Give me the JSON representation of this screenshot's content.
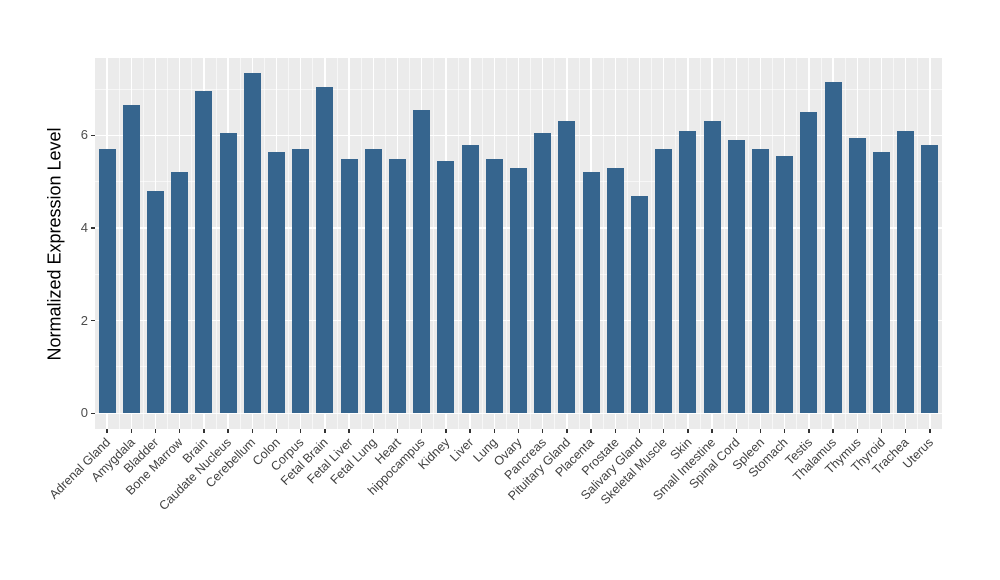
{
  "chart_data": {
    "type": "bar",
    "title": "",
    "xlabel": "",
    "ylabel": "Normalized Expression Level",
    "categories": [
      "Adrenal Gland",
      "Amygdala",
      "Bladder",
      "Bone Marrow",
      "Brain",
      "Caudate Nucleus",
      "Cerebellum",
      "Colon",
      "Corpus",
      "Fetal Brain",
      "Fetal Liver",
      "Fetal Lung",
      "Heart",
      "hippocampus",
      "Kidney",
      "Liver",
      "Lung",
      "Ovary",
      "Pancreas",
      "Pituitary Gland",
      "Placenta",
      "Prostate",
      "Salivary Gland",
      "Skeletal Muscle",
      "Skin",
      "Small Intestine",
      "Spinal Cord",
      "Spleen",
      "Stomach",
      "Testis",
      "Thalamus",
      "Thymus",
      "Thyroid",
      "Trachea",
      "Uterus"
    ],
    "values": [
      5.7,
      6.65,
      4.8,
      5.2,
      6.95,
      6.05,
      7.35,
      5.65,
      5.7,
      7.05,
      5.5,
      5.7,
      5.5,
      6.55,
      5.45,
      5.8,
      5.5,
      5.3,
      6.05,
      6.3,
      5.2,
      5.3,
      4.7,
      5.7,
      6.1,
      6.3,
      5.9,
      5.7,
      5.55,
      6.5,
      7.15,
      5.95,
      5.65,
      6.1,
      5.8
    ],
    "y_ticks": [
      0,
      2,
      4,
      6
    ],
    "y_minor_ticks": [
      1,
      3,
      5,
      7
    ],
    "ylim": [
      -0.34,
      7.67
    ],
    "grid": true,
    "legend": "none",
    "bar_color": "#36658E",
    "panel_bg": "#EBEBEB",
    "grid_color": "#FFFFFF",
    "tick_text_color": "#4D4D4D",
    "axis_title_color": "#000000"
  }
}
